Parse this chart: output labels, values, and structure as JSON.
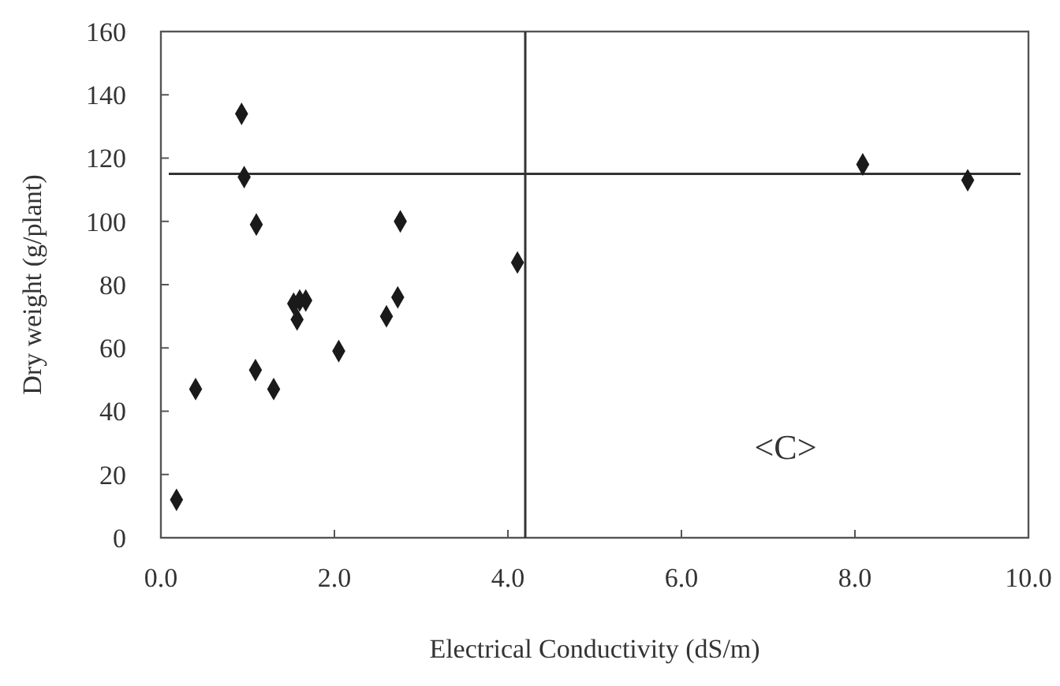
{
  "chart_data": {
    "type": "scatter",
    "xlabel": "Electrical Conductivity (dS/m)",
    "ylabel": "Dry weight (g/plant)",
    "x": [
      0.18,
      0.4,
      1.09,
      1.3,
      2.05,
      0.93,
      0.96,
      1.1,
      2.76,
      1.53,
      1.6,
      1.67,
      1.57,
      2.6,
      2.73,
      4.11,
      8.09,
      9.3
    ],
    "series": [
      {
        "color": "#1a1a1a",
        "values": [
          12,
          47,
          53,
          47,
          59,
          134,
          114,
          99,
          100,
          74,
          75,
          75,
          69,
          70,
          76,
          87,
          118,
          113
        ]
      }
    ],
    "marker": "diamond",
    "grid": false,
    "xlim": [
      0,
      10
    ],
    "xticks": [
      {
        "value": 0,
        "label": "0.0"
      },
      {
        "value": 2,
        "label": "2.0"
      },
      {
        "value": 4,
        "label": "4.0"
      },
      {
        "value": 6,
        "label": "6.0"
      },
      {
        "value": 8,
        "label": "8.0"
      },
      {
        "value": 10,
        "label": "10.0"
      }
    ],
    "ylim": [
      0,
      160
    ],
    "yticks": [
      0,
      20,
      40,
      60,
      80,
      100,
      120,
      140,
      160
    ],
    "ref_lines": [
      {
        "axis": "x",
        "value": 4.2,
        "color": "#333333"
      },
      {
        "axis": "y",
        "value": 115,
        "color": "#333333"
      }
    ],
    "annotations": [
      "<C>"
    ]
  }
}
